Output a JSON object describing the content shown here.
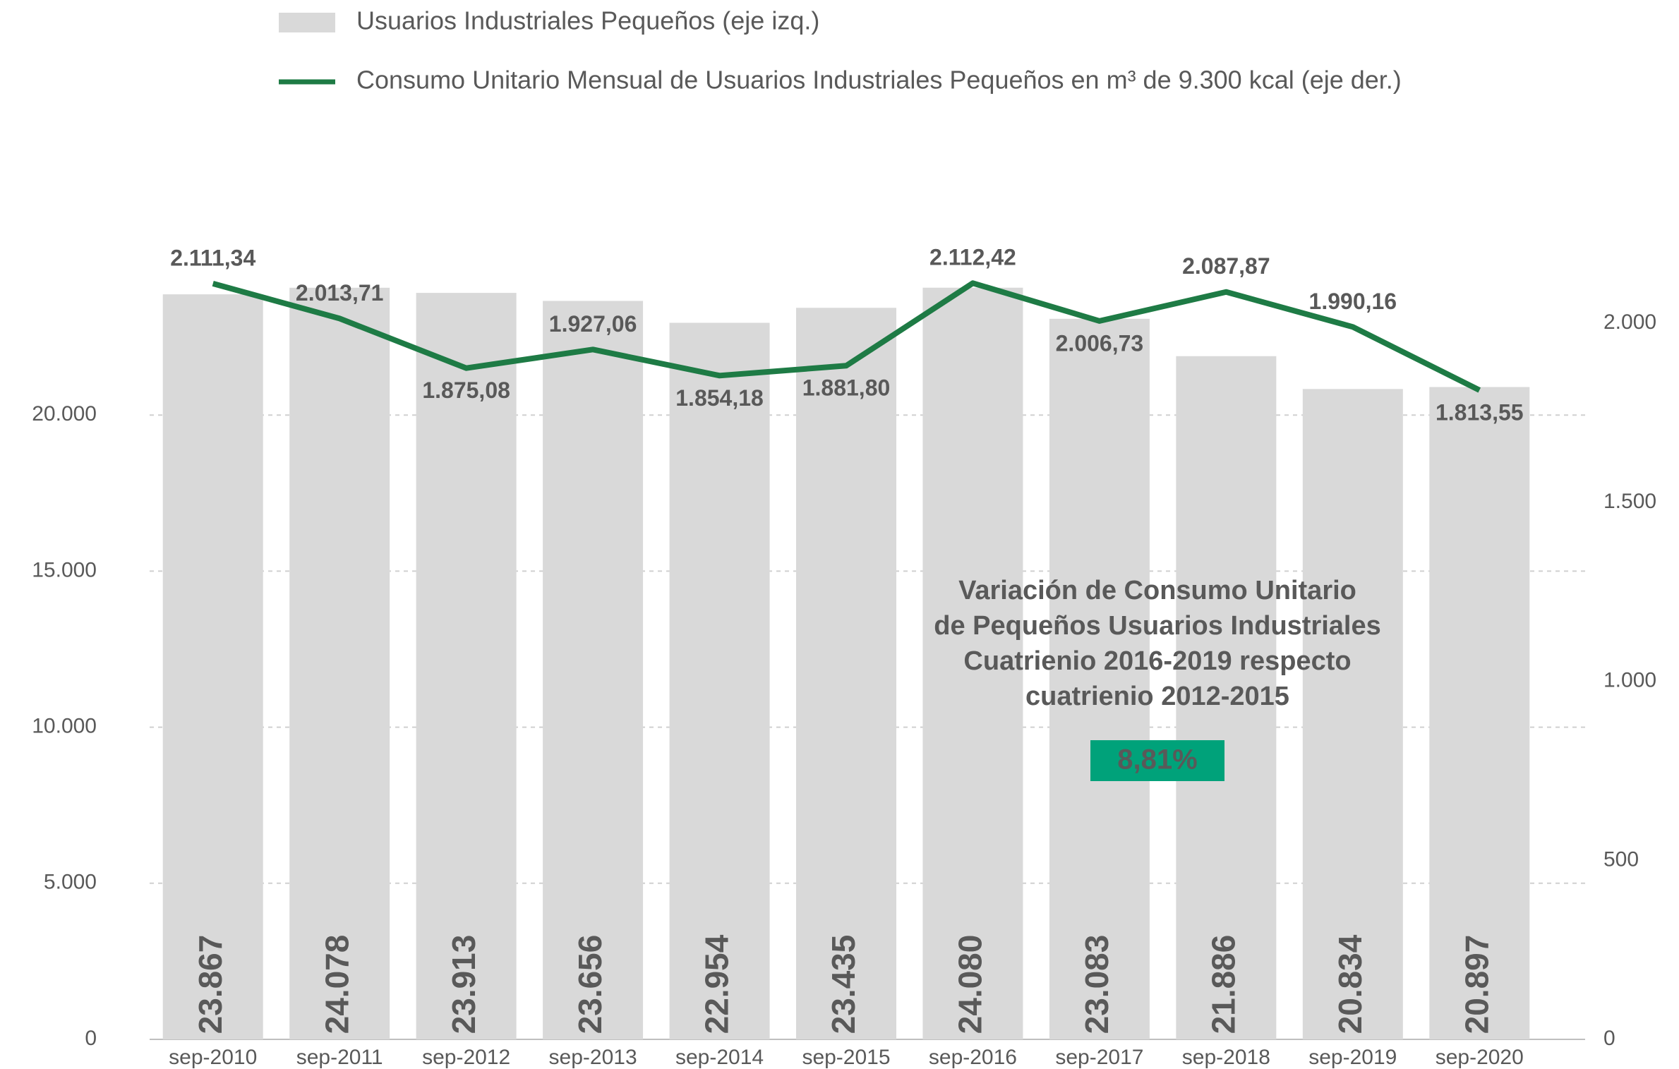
{
  "chart_data": {
    "type": "combo",
    "categories": [
      "sep-2010",
      "sep-2011",
      "sep-2012",
      "sep-2013",
      "sep-2014",
      "sep-2015",
      "sep-2016",
      "sep-2017",
      "sep-2018",
      "sep-2019",
      "sep-2020"
    ],
    "series": [
      {
        "name": "Usuarios Industriales Pequeños (eje izq.)",
        "type": "bar",
        "color": "#d9d9d9",
        "values": [
          23867,
          24078,
          23913,
          23656,
          22954,
          23435,
          24080,
          23083,
          21886,
          20834,
          20897
        ],
        "value_labels": [
          "23.867",
          "24.078",
          "23.913",
          "23.656",
          "22.954",
          "23.435",
          "24.080",
          "23.083",
          "21.886",
          "20.834",
          "20.897"
        ]
      },
      {
        "name": "Consumo Unitario Mensual de Usuarios Industriales Pequeños en m³ de 9.300 kcal (eje der.)",
        "type": "line",
        "axis": "y2",
        "color": "#1e7b45",
        "values": [
          2111.34,
          2013.71,
          1875.08,
          1927.06,
          1854.18,
          1881.8,
          2112.42,
          2006.73,
          2087.87,
          1990.16,
          1813.55
        ],
        "value_labels": [
          "2.111,34",
          "2.013,71",
          "1.875,08",
          "1.927,06",
          "1.854,18",
          "1.881,80",
          "2.112,42",
          "2.006,73",
          "2.087,87",
          "1.990,16",
          "1.813,55"
        ]
      }
    ],
    "ylim": [
      0,
      25000
    ],
    "yticks": [
      0,
      {
        "value": 5000,
        "label": "5.000"
      },
      {
        "value": 10000,
        "label": "10.000"
      },
      {
        "value": 15000,
        "label": "15.000"
      },
      {
        "value": 20000,
        "label": "20.000"
      }
    ],
    "y2lim": [
      0,
      2180
    ],
    "y2ticks": [
      0,
      500,
      {
        "value": 1000,
        "label": "1.000"
      },
      {
        "value": 1500,
        "label": "1.500"
      },
      {
        "value": 2000,
        "label": "2.000"
      }
    ],
    "grid": true,
    "annotation": {
      "lines": [
        "Variación de Consumo Unitario",
        "de Pequeños Usuarios Industriales",
        "Cuatrienio 2016-2019 respecto",
        "cuatrienio 2012-2015"
      ],
      "value": "8,81%",
      "color": "#00a27a"
    }
  }
}
